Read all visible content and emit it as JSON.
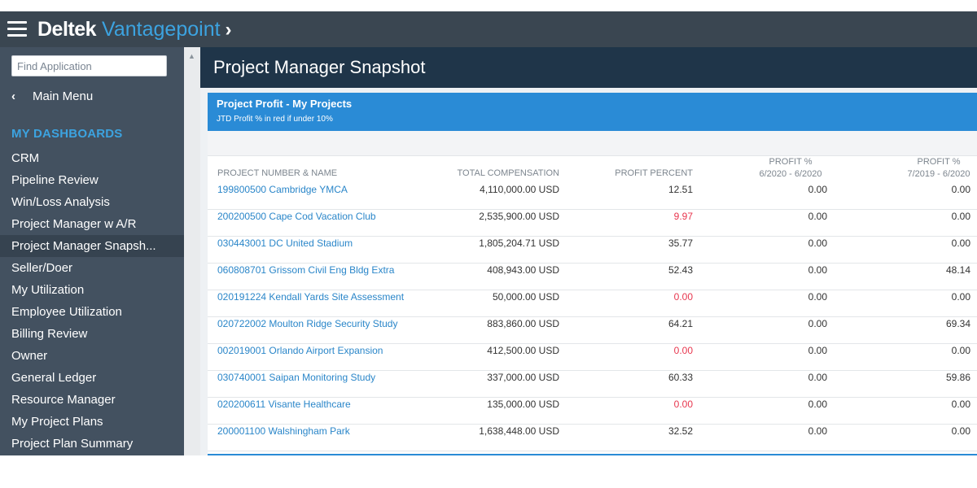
{
  "app": {
    "brand_primary": "Deltek",
    "brand_secondary": "Vantagepoint",
    "brand_chevron": "›",
    "accent_color": "#3ca3e0"
  },
  "sidebar": {
    "search_placeholder": "Find Application",
    "main_menu_label": "Main Menu",
    "dashboards_title": "MY DASHBOARDS",
    "items": [
      {
        "label": "CRM"
      },
      {
        "label": "Pipeline Review"
      },
      {
        "label": "Win/Loss Analysis"
      },
      {
        "label": "Project Manager w A/R"
      },
      {
        "label": "Project Manager Snapsh..."
      },
      {
        "label": "Seller/Doer"
      },
      {
        "label": "My Utilization"
      },
      {
        "label": "Employee Utilization"
      },
      {
        "label": "Billing Review"
      },
      {
        "label": "Owner"
      },
      {
        "label": "General Ledger"
      },
      {
        "label": "Resource Manager"
      },
      {
        "label": "My Project Plans"
      },
      {
        "label": "Project Plan Summary"
      }
    ],
    "active_index": 4
  },
  "page": {
    "title": "Project Manager Snapshot"
  },
  "widget": {
    "title": "Project Profit - My Projects",
    "subtitle": "JTD Profit % in red if under 10%",
    "columns": {
      "name": "PROJECT NUMBER & NAME",
      "comp": "TOTAL COMPENSATION",
      "pct": "PROFIT PERCENT",
      "p1_line1": "PROFIT %",
      "p1_line2": "6/2020 - 6/2020",
      "p2_line1": "PROFIT %",
      "p2_line2": "7/2019 - 6/2020"
    },
    "rows": [
      {
        "name": "199800500 Cambridge YMCA",
        "comp": "4,110,000.00 USD",
        "pct": "12.51",
        "p1": "0.00",
        "p2": "0.00",
        "red": false
      },
      {
        "name": "200200500 Cape Cod Vacation Club",
        "comp": "2,535,900.00 USD",
        "pct": "9.97",
        "p1": "0.00",
        "p2": "0.00",
        "red": true
      },
      {
        "name": "030443001 DC United Stadium",
        "comp": "1,805,204.71 USD",
        "pct": "35.77",
        "p1": "0.00",
        "p2": "0.00",
        "red": false
      },
      {
        "name": "060808701 Grissom Civil Eng Bldg Extra",
        "comp": "408,943.00 USD",
        "pct": "52.43",
        "p1": "0.00",
        "p2": "48.14",
        "red": false
      },
      {
        "name": "020191224 Kendall Yards Site Assessment",
        "comp": "50,000.00 USD",
        "pct": "0.00",
        "p1": "0.00",
        "p2": "0.00",
        "red": true
      },
      {
        "name": "020722002 Moulton Ridge Security Study",
        "comp": "883,860.00 USD",
        "pct": "64.21",
        "p1": "0.00",
        "p2": "69.34",
        "red": false
      },
      {
        "name": "002019001 Orlando Airport Expansion",
        "comp": "412,500.00 USD",
        "pct": "0.00",
        "p1": "0.00",
        "p2": "0.00",
        "red": true
      },
      {
        "name": "030740001 Saipan Monitoring Study",
        "comp": "337,000.00 USD",
        "pct": "60.33",
        "p1": "0.00",
        "p2": "59.86",
        "red": false
      },
      {
        "name": "020200611 Visante Healthcare",
        "comp": "135,000.00 USD",
        "pct": "0.00",
        "p1": "0.00",
        "p2": "0.00",
        "red": true
      },
      {
        "name": "200001100 Walshingham Park",
        "comp": "1,638,448.00 USD",
        "pct": "32.52",
        "p1": "0.00",
        "p2": "0.00",
        "red": false
      }
    ]
  }
}
